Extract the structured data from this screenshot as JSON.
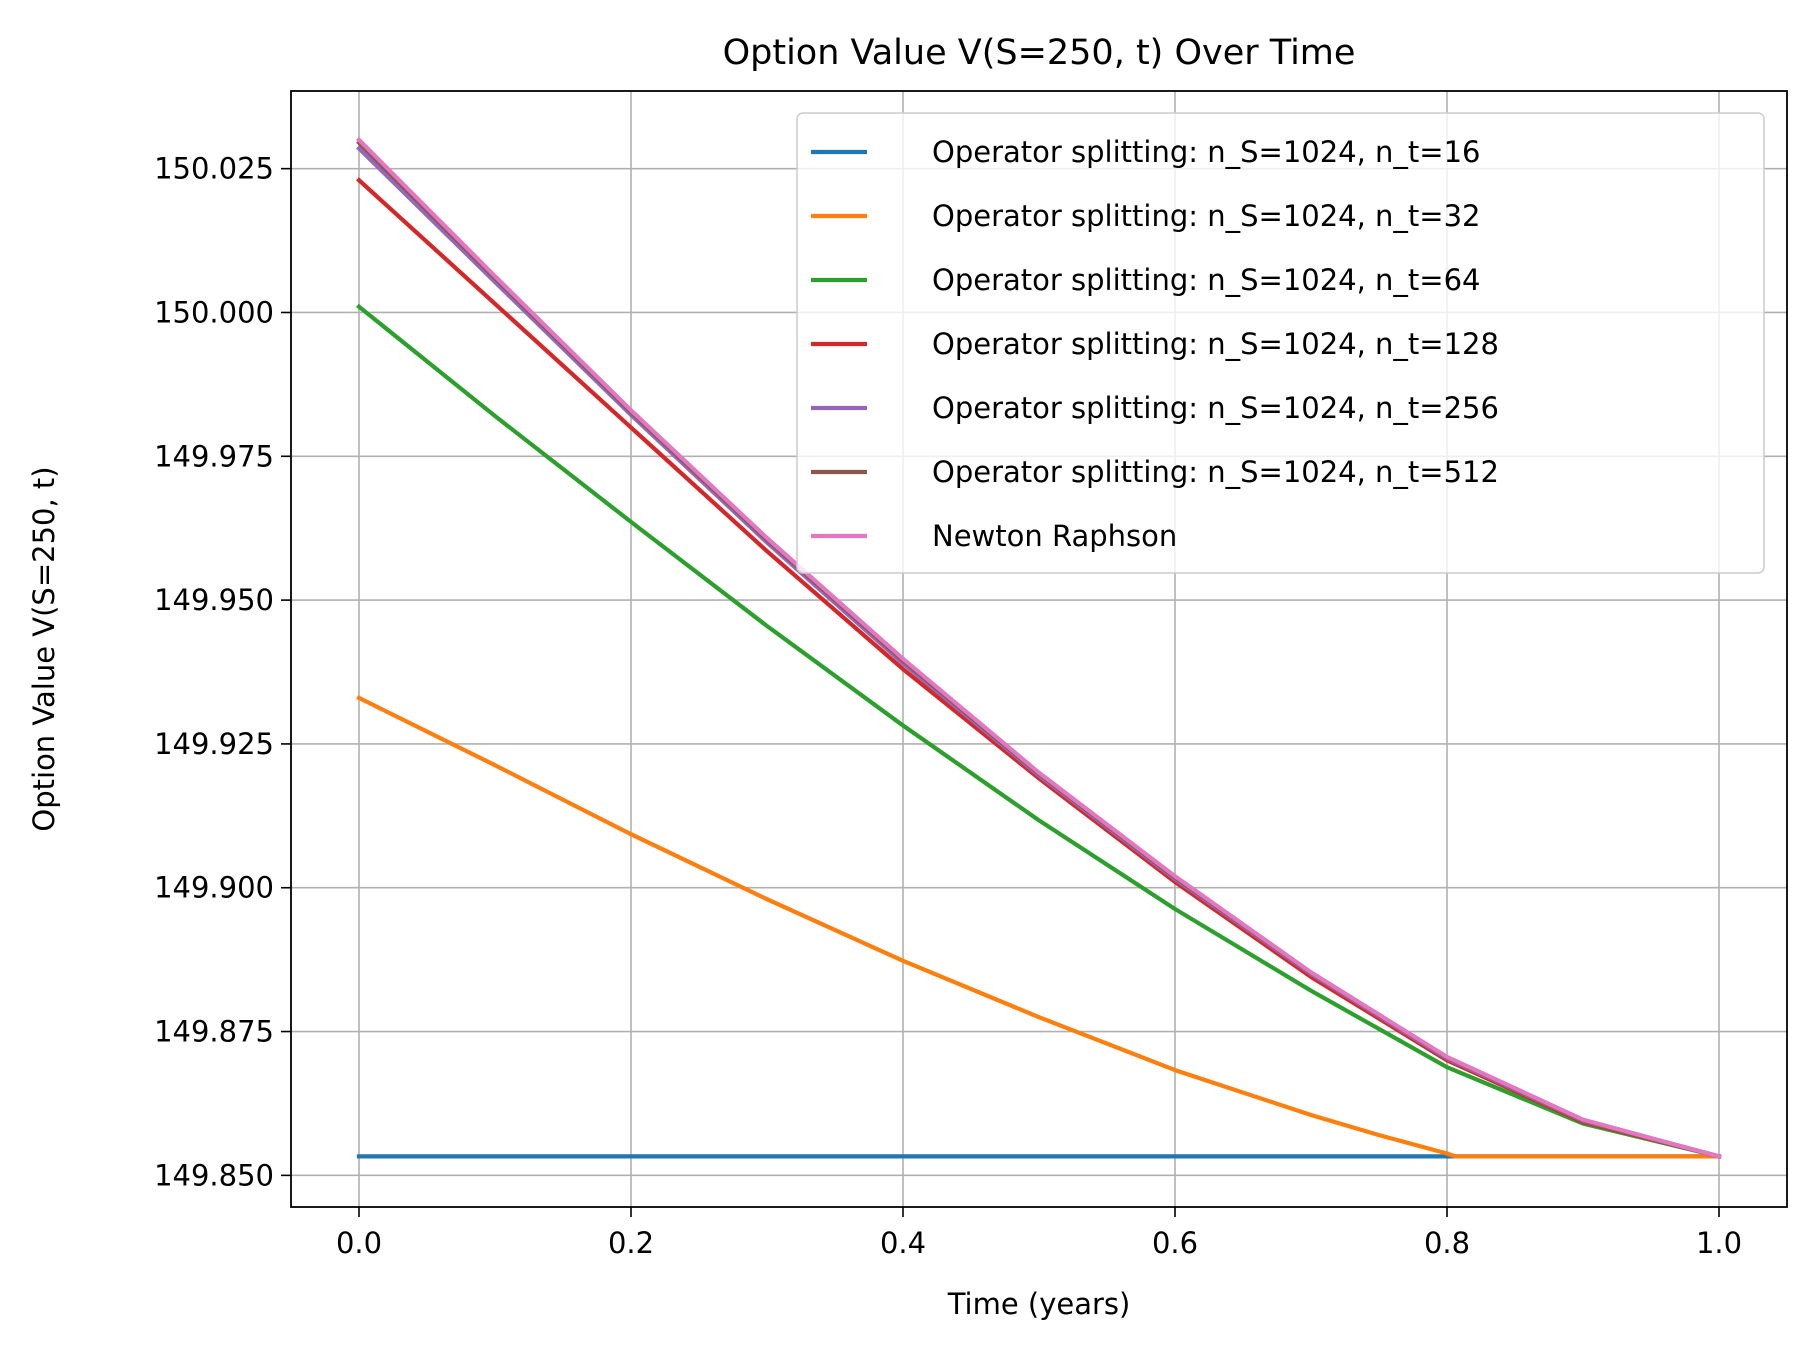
{
  "chart_data": {
    "type": "line",
    "title": "Option Value V(S=250, t) Over Time",
    "xlabel": "Time (years)",
    "ylabel": "Option Value V(S=250, t)",
    "xlim": [
      -0.05,
      1.05
    ],
    "ylim": [
      149.8445,
      150.0385
    ],
    "xticks": [
      0.0,
      0.2,
      0.4,
      0.6,
      0.8,
      1.0
    ],
    "xtick_labels": [
      "0.0",
      "0.2",
      "0.4",
      "0.6",
      "0.8",
      "1.0"
    ],
    "yticks": [
      149.85,
      149.875,
      149.9,
      149.925,
      149.95,
      149.975,
      150.0,
      150.025
    ],
    "ytick_labels": [
      "149.850",
      "149.875",
      "149.900",
      "149.925",
      "149.950",
      "149.975",
      "150.000",
      "150.025"
    ],
    "grid": true,
    "legend_position": "top-right",
    "series": [
      {
        "name": "Operator splitting: n_S=1024, n_t=16",
        "color": "#1f77b4",
        "x": [
          0.0,
          0.2,
          0.4,
          0.6,
          0.8,
          1.0
        ],
        "y": [
          149.8533,
          149.8533,
          149.8533,
          149.8533,
          149.8533,
          149.8533
        ]
      },
      {
        "name": "Operator splitting: n_S=1024, n_t=32",
        "color": "#ff7f0e",
        "x": [
          0.0,
          0.1,
          0.2,
          0.3,
          0.4,
          0.5,
          0.6,
          0.7,
          0.75,
          0.8,
          0.806,
          0.9,
          1.0
        ],
        "y": [
          149.933,
          149.9213,
          149.9093,
          149.898,
          149.8873,
          149.8775,
          149.8683,
          149.8605,
          149.857,
          149.8538,
          149.8533,
          149.8533,
          149.8533
        ]
      },
      {
        "name": "Operator splitting: n_S=1024, n_t=64",
        "color": "#2ca02c",
        "x": [
          0.0,
          0.1,
          0.2,
          0.3,
          0.4,
          0.5,
          0.6,
          0.7,
          0.8,
          0.9,
          1.0
        ],
        "y": [
          150.001,
          149.982,
          149.9636,
          149.9455,
          149.9282,
          149.9117,
          149.8963,
          149.8821,
          149.8688,
          149.859,
          149.8533
        ]
      },
      {
        "name": "Operator splitting: n_S=1024, n_t=128",
        "color": "#d62728",
        "x": [
          0.0,
          0.1,
          0.2,
          0.3,
          0.4,
          0.5,
          0.6,
          0.7,
          0.8,
          0.9,
          1.0
        ],
        "y": [
          150.023,
          150.0015,
          149.98,
          149.9585,
          149.938,
          149.919,
          149.901,
          149.8845,
          149.87,
          149.8593,
          149.8533
        ]
      },
      {
        "name": "Operator splitting: n_S=1024, n_t=256",
        "color": "#9467bd",
        "x": [
          0.0,
          0.1,
          0.2,
          0.3,
          0.4,
          0.5,
          0.6,
          0.7,
          0.8,
          0.9,
          1.0
        ],
        "y": [
          150.0285,
          150.0053,
          149.9822,
          149.96,
          149.939,
          149.9195,
          149.9015,
          149.885,
          149.8703,
          149.8595,
          149.8533
        ]
      },
      {
        "name": "Operator splitting: n_S=1024, n_t=512",
        "color": "#8c564b",
        "x": [
          0.0,
          0.1,
          0.2,
          0.3,
          0.4,
          0.5,
          0.6,
          0.7,
          0.8,
          0.9,
          1.0
        ],
        "y": [
          150.0295,
          150.006,
          149.9827,
          149.9605,
          149.9395,
          149.9198,
          149.9018,
          149.8852,
          149.8705,
          149.8596,
          149.8533
        ]
      },
      {
        "name": "Newton Raphson",
        "color": "#e377c2",
        "x": [
          0.0,
          0.1,
          0.2,
          0.3,
          0.4,
          0.5,
          0.6,
          0.7,
          0.8,
          0.9,
          1.0
        ],
        "y": [
          150.03,
          150.0063,
          149.983,
          149.9608,
          149.9398,
          149.92,
          149.902,
          149.8853,
          149.8706,
          149.8597,
          149.8533
        ]
      }
    ]
  }
}
